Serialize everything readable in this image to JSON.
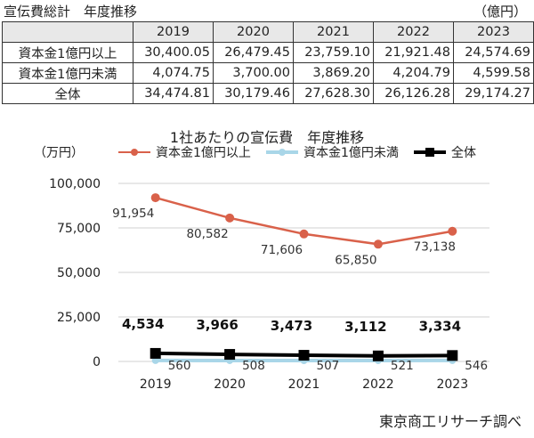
{
  "table": {
    "title": "宣伝費総計　年度推移",
    "unit": "（億円）",
    "headers": [
      "2019",
      "2020",
      "2021",
      "2022",
      "2023"
    ],
    "rows": [
      {
        "label": "資本金1億円以上",
        "values": [
          "30,400.05",
          "26,479.45",
          "23,759.10",
          "21,921.48",
          "24,574.69"
        ]
      },
      {
        "label": "資本金1億円未満",
        "values": [
          "4,074.75",
          "3,700.00",
          "3,869.20",
          "4,204.79",
          "4,599.58"
        ]
      },
      {
        "label": "全体",
        "values": [
          "34,474.81",
          "30,179.46",
          "27,628.30",
          "26,126.28",
          "29,174.27"
        ]
      }
    ]
  },
  "chart_data": {
    "type": "line",
    "title": "1社あたりの宣伝費　年度推移",
    "ylabel": "（万円）",
    "xlabel": "",
    "categories": [
      "2019",
      "2020",
      "2021",
      "2022",
      "2023"
    ],
    "ylim": [
      0,
      100000
    ],
    "yticks": [
      "0",
      "25,000",
      "50,000",
      "75,000",
      "100,000"
    ],
    "legend": "top",
    "grid": true,
    "series": [
      {
        "name": "資本金1億円以上",
        "color": "#d9614a",
        "values": [
          91954,
          80582,
          71606,
          65850,
          73138
        ],
        "labels": [
          "91,954",
          "80,582",
          "71,606",
          "65,850",
          "73,138"
        ]
      },
      {
        "name": "資本金1億円未満",
        "color": "#a9d6e8",
        "values": [
          560,
          508,
          507,
          521,
          546
        ],
        "labels": [
          "560",
          "508",
          "507",
          "521",
          "546"
        ]
      },
      {
        "name": "全体",
        "color": "#000000",
        "values": [
          4534,
          3966,
          3473,
          3112,
          3334
        ],
        "labels": [
          "4,534",
          "3,966",
          "3,473",
          "3,112",
          "3,334"
        ]
      }
    ]
  },
  "credit": "東京商工リサーチ調べ"
}
